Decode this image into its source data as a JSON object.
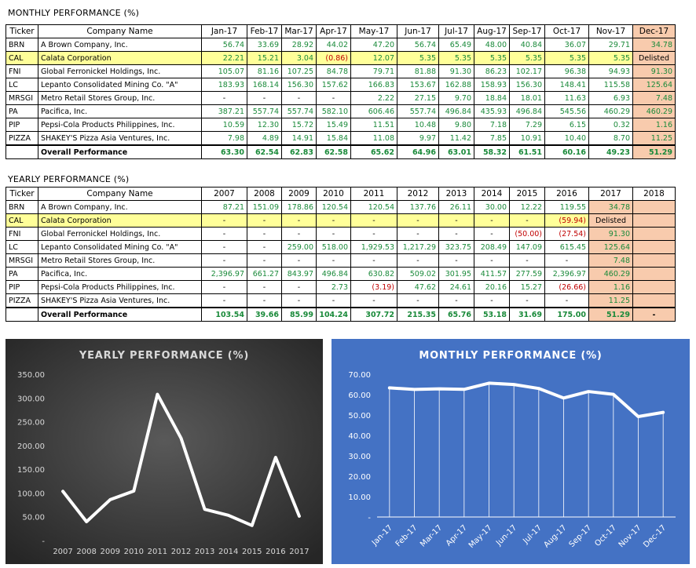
{
  "monthly": {
    "title": "MONTHLY PERFORMANCE (%)",
    "headers": [
      "Ticker",
      "Company Name",
      "Jan-17",
      "Feb-17",
      "Mar-17",
      "Apr-17",
      "May-17",
      "Jun-17",
      "Jul-17",
      "Aug-17",
      "Sep-17",
      "Oct-17",
      "Nov-17",
      "Dec-17"
    ],
    "rows": [
      {
        "ticker": "BRN",
        "name": "A Brown Company, Inc.",
        "values": [
          "56.74",
          "33.69",
          "28.92",
          "44.02",
          "47.20",
          "56.74",
          "65.49",
          "48.00",
          "40.84",
          "36.07",
          "29.71",
          "34.78"
        ]
      },
      {
        "ticker": "CAL",
        "name": "Calata Corporation",
        "highlight": true,
        "values": [
          "22.21",
          "15.21",
          "3.04",
          "(0.86)",
          "12.07",
          "5.35",
          "5.35",
          "5.35",
          "5.35",
          "5.35",
          "5.35",
          "Delisted"
        ]
      },
      {
        "ticker": "FNI",
        "name": "Global Ferronickel Holdings, Inc.",
        "values": [
          "105.07",
          "81.16",
          "107.25",
          "84.78",
          "79.71",
          "81.88",
          "91.30",
          "86.23",
          "102.17",
          "96.38",
          "94.93",
          "91.30"
        ]
      },
      {
        "ticker": "LC",
        "name": "Lepanto Consolidated Mining Co. \"A\"",
        "values": [
          "183.93",
          "168.14",
          "156.30",
          "157.62",
          "166.83",
          "153.67",
          "162.88",
          "158.93",
          "156.30",
          "148.41",
          "115.58",
          "125.64"
        ]
      },
      {
        "ticker": "MRSGI",
        "name": "Metro Retail Stores Group, Inc.",
        "values": [
          "-",
          "-",
          "-",
          "-",
          "2.22",
          "27.15",
          "9.70",
          "18.84",
          "18.01",
          "11.63",
          "6.93",
          "7.48"
        ]
      },
      {
        "ticker": "PA",
        "name": "Pacifica, Inc.",
        "values": [
          "387.21",
          "557.74",
          "557.74",
          "582.10",
          "606.46",
          "557.74",
          "496.84",
          "435.93",
          "496.84",
          "545.56",
          "460.29",
          "460.29"
        ]
      },
      {
        "ticker": "PIP",
        "name": "Pepsi-Cola Products Philippines, Inc.",
        "values": [
          "10.59",
          "12.30",
          "15.72",
          "15.49",
          "11.51",
          "10.48",
          "9.80",
          "7.18",
          "7.29",
          "6.15",
          "0.32",
          "1.16"
        ]
      },
      {
        "ticker": "PIZZA",
        "name": "SHAKEY'S Pizza Asia Ventures, Inc.",
        "values": [
          "7.98",
          "4.89",
          "14.91",
          "15.84",
          "11.08",
          "9.97",
          "11.42",
          "7.85",
          "10.91",
          "10.40",
          "8.70",
          "11.25"
        ]
      }
    ],
    "total": {
      "label": "Overall Performance",
      "values": [
        "63.30",
        "62.54",
        "62.83",
        "62.58",
        "65.62",
        "64.96",
        "63.01",
        "58.32",
        "61.51",
        "60.16",
        "49.23",
        "51.29"
      ]
    }
  },
  "yearly": {
    "title": "YEARLY PERFORMANCE (%)",
    "headers": [
      "Ticker",
      "Company Name",
      "2007",
      "2008",
      "2009",
      "2010",
      "2011",
      "2012",
      "2013",
      "2014",
      "2015",
      "2016",
      "2017",
      "2018"
    ],
    "rows": [
      {
        "ticker": "BRN",
        "name": "A Brown Company, Inc.",
        "values": [
          "87.21",
          "151.09",
          "178.86",
          "120.54",
          "120.54",
          "137.76",
          "26.11",
          "30.00",
          "12.22",
          "119.55",
          "34.78",
          ""
        ]
      },
      {
        "ticker": "CAL",
        "name": "Calata Corporation",
        "highlight": true,
        "values": [
          "-",
          "-",
          "-",
          "-",
          "-",
          "-",
          "-",
          "-",
          "-",
          "(59.94)",
          "Delisted",
          ""
        ]
      },
      {
        "ticker": "FNI",
        "name": "Global Ferronickel Holdings, Inc.",
        "values": [
          "-",
          "-",
          "-",
          "-",
          "-",
          "-",
          "-",
          "-",
          "(50.00)",
          "(27.54)",
          "91.30",
          ""
        ]
      },
      {
        "ticker": "LC",
        "name": "Lepanto Consolidated Mining Co. \"A\"",
        "values": [
          "-",
          "-",
          "259.00",
          "518.00",
          "1,929.53",
          "1,217.29",
          "323.75",
          "208.49",
          "147.09",
          "615.45",
          "125.64",
          ""
        ]
      },
      {
        "ticker": "MRSGI",
        "name": "Metro Retail Stores Group, Inc.",
        "values": [
          "-",
          "-",
          "-",
          "-",
          "-",
          "-",
          "-",
          "-",
          "-",
          "-",
          "7.48",
          ""
        ]
      },
      {
        "ticker": "PA",
        "name": "Pacifica, Inc.",
        "values": [
          "2,396.97",
          "661.27",
          "843.97",
          "496.84",
          "630.82",
          "509.02",
          "301.95",
          "411.57",
          "277.59",
          "2,396.97",
          "460.29",
          ""
        ]
      },
      {
        "ticker": "PIP",
        "name": "Pepsi-Cola Products Philippines, Inc.",
        "values": [
          "-",
          "-",
          "-",
          "2.73",
          "(3.19)",
          "47.62",
          "24.61",
          "20.16",
          "15.27",
          "(26.66)",
          "1.16",
          ""
        ]
      },
      {
        "ticker": "PIZZA",
        "name": "SHAKEY'S Pizza Asia Ventures, Inc.",
        "values": [
          "-",
          "-",
          "-",
          "-",
          "-",
          "-",
          "-",
          "-",
          "-",
          "-",
          "11.25",
          ""
        ]
      }
    ],
    "total": {
      "label": "Overall Performance",
      "values": [
        "103.54",
        "39.66",
        "85.99",
        "104.24",
        "307.72",
        "215.35",
        "65.76",
        "53.18",
        "31.69",
        "175.00",
        "51.29",
        "-"
      ]
    }
  },
  "chart_data": [
    {
      "type": "line",
      "title": "YEARLY PERFORMANCE (%)",
      "categories": [
        "2007",
        "2008",
        "2009",
        "2010",
        "2011",
        "2012",
        "2013",
        "2014",
        "2015",
        "2016",
        "2017"
      ],
      "values": [
        103.54,
        39.66,
        85.99,
        104.24,
        307.72,
        215.35,
        65.76,
        53.18,
        31.69,
        175.0,
        51.29
      ],
      "ylim": [
        0,
        350
      ],
      "yticks": [
        "-",
        "50.00",
        "100.00",
        "150.00",
        "200.00",
        "250.00",
        "300.00",
        "350.00"
      ],
      "grid": false,
      "colors": {
        "background": "#3a3a3a",
        "line": "#ffffff",
        "text": "#d9d9d9"
      }
    },
    {
      "type": "line",
      "title": "MONTHLY PERFORMANCE (%)",
      "categories": [
        "Jan-17",
        "Feb-17",
        "Mar-17",
        "Apr-17",
        "May-17",
        "Jun-17",
        "Jul-17",
        "Aug-17",
        "Sep-17",
        "Oct-17",
        "Nov-17",
        "Dec-17"
      ],
      "values": [
        63.3,
        62.54,
        62.83,
        62.58,
        65.62,
        64.96,
        63.01,
        58.32,
        61.51,
        60.16,
        49.23,
        51.29
      ],
      "ylim": [
        0,
        70
      ],
      "yticks": [
        "-",
        "10.00",
        "20.00",
        "30.00",
        "40.00",
        "50.00",
        "60.00",
        "70.00"
      ],
      "grid": false,
      "drop_lines": true,
      "colors": {
        "background": "#4472c4",
        "line": "#ffffff",
        "text": "#ffffff"
      }
    }
  ]
}
